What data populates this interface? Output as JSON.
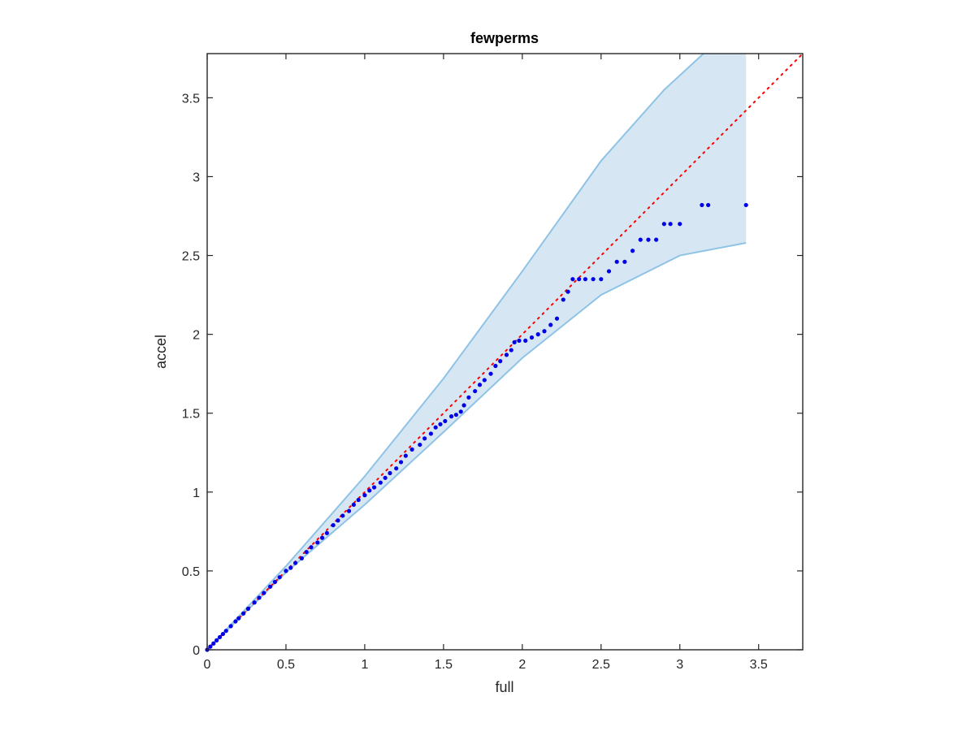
{
  "chart_data": {
    "type": "scatter",
    "title": "fewperms",
    "xlabel": "full",
    "ylabel": "accel",
    "xlim": [
      0,
      3.78
    ],
    "ylim": [
      0,
      3.78
    ],
    "xticks": [
      "0",
      "0.5",
      "1",
      "1.5",
      "2",
      "2.5",
      "3",
      "3.5"
    ],
    "yticks": [
      "0",
      "0.5",
      "1",
      "1.5",
      "2",
      "2.5",
      "3",
      "3.5"
    ],
    "grid": false,
    "reference_line": {
      "style": "dotted",
      "slope": 1,
      "color": "#ff0000"
    },
    "band": {
      "color_fill": "#d6e7f3",
      "color_edge": "#8fc3e6",
      "x_end": 3.42,
      "upper": [
        [
          0,
          0
        ],
        [
          0.5,
          0.53
        ],
        [
          1,
          1.1
        ],
        [
          1.5,
          1.72
        ],
        [
          2,
          2.4
        ],
        [
          2.5,
          3.1
        ],
        [
          2.9,
          3.55
        ],
        [
          3.15,
          3.78
        ],
        [
          3.42,
          3.78
        ]
      ],
      "lower": [
        [
          0,
          0
        ],
        [
          0.5,
          0.49
        ],
        [
          1,
          0.92
        ],
        [
          1.5,
          1.38
        ],
        [
          2,
          1.85
        ],
        [
          2.5,
          2.25
        ],
        [
          3,
          2.5
        ],
        [
          3.42,
          2.58
        ]
      ]
    },
    "series": [
      {
        "color": "#0000e6",
        "points": [
          [
            0,
            0
          ],
          [
            0.02,
            0.02
          ],
          [
            0.04,
            0.04
          ],
          [
            0.06,
            0.06
          ],
          [
            0.08,
            0.08
          ],
          [
            0.1,
            0.1
          ],
          [
            0.12,
            0.12
          ],
          [
            0.15,
            0.15
          ],
          [
            0.18,
            0.18
          ],
          [
            0.2,
            0.2
          ],
          [
            0.23,
            0.23
          ],
          [
            0.26,
            0.26
          ],
          [
            0.3,
            0.3
          ],
          [
            0.33,
            0.33
          ],
          [
            0.36,
            0.36
          ],
          [
            0.4,
            0.4
          ],
          [
            0.43,
            0.43
          ],
          [
            0.46,
            0.46
          ],
          [
            0.5,
            0.5
          ],
          [
            0.53,
            0.52
          ],
          [
            0.56,
            0.55
          ],
          [
            0.6,
            0.58
          ],
          [
            0.63,
            0.62
          ],
          [
            0.66,
            0.65
          ],
          [
            0.7,
            0.68
          ],
          [
            0.73,
            0.71
          ],
          [
            0.76,
            0.74
          ],
          [
            0.8,
            0.79
          ],
          [
            0.83,
            0.82
          ],
          [
            0.86,
            0.85
          ],
          [
            0.9,
            0.88
          ],
          [
            0.93,
            0.92
          ],
          [
            0.96,
            0.95
          ],
          [
            1.0,
            0.98
          ],
          [
            1.03,
            1.01
          ],
          [
            1.06,
            1.03
          ],
          [
            1.1,
            1.06
          ],
          [
            1.13,
            1.09
          ],
          [
            1.16,
            1.12
          ],
          [
            1.2,
            1.15
          ],
          [
            1.23,
            1.19
          ],
          [
            1.26,
            1.23
          ],
          [
            1.3,
            1.27
          ],
          [
            1.35,
            1.3
          ],
          [
            1.38,
            1.34
          ],
          [
            1.42,
            1.37
          ],
          [
            1.45,
            1.41
          ],
          [
            1.48,
            1.43
          ],
          [
            1.51,
            1.45
          ],
          [
            1.55,
            1.48
          ],
          [
            1.58,
            1.49
          ],
          [
            1.61,
            1.51
          ],
          [
            1.63,
            1.55
          ],
          [
            1.66,
            1.6
          ],
          [
            1.7,
            1.64
          ],
          [
            1.73,
            1.68
          ],
          [
            1.76,
            1.71
          ],
          [
            1.8,
            1.75
          ],
          [
            1.83,
            1.8
          ],
          [
            1.86,
            1.83
          ],
          [
            1.9,
            1.87
          ],
          [
            1.93,
            1.9
          ],
          [
            1.95,
            1.95
          ],
          [
            1.98,
            1.96
          ],
          [
            2.02,
            1.96
          ],
          [
            2.06,
            1.98
          ],
          [
            2.1,
            2.0
          ],
          [
            2.14,
            2.02
          ],
          [
            2.18,
            2.06
          ],
          [
            2.22,
            2.1
          ],
          [
            2.26,
            2.22
          ],
          [
            2.29,
            2.27
          ],
          [
            2.32,
            2.35
          ],
          [
            2.36,
            2.35
          ],
          [
            2.4,
            2.35
          ],
          [
            2.45,
            2.35
          ],
          [
            2.5,
            2.35
          ],
          [
            2.55,
            2.4
          ],
          [
            2.6,
            2.46
          ],
          [
            2.65,
            2.46
          ],
          [
            2.7,
            2.53
          ],
          [
            2.75,
            2.6
          ],
          [
            2.8,
            2.6
          ],
          [
            2.85,
            2.6
          ],
          [
            2.9,
            2.7
          ],
          [
            2.94,
            2.7
          ],
          [
            3.0,
            2.7
          ],
          [
            3.14,
            2.82
          ],
          [
            3.18,
            2.82
          ],
          [
            3.42,
            2.82
          ]
        ]
      }
    ]
  }
}
